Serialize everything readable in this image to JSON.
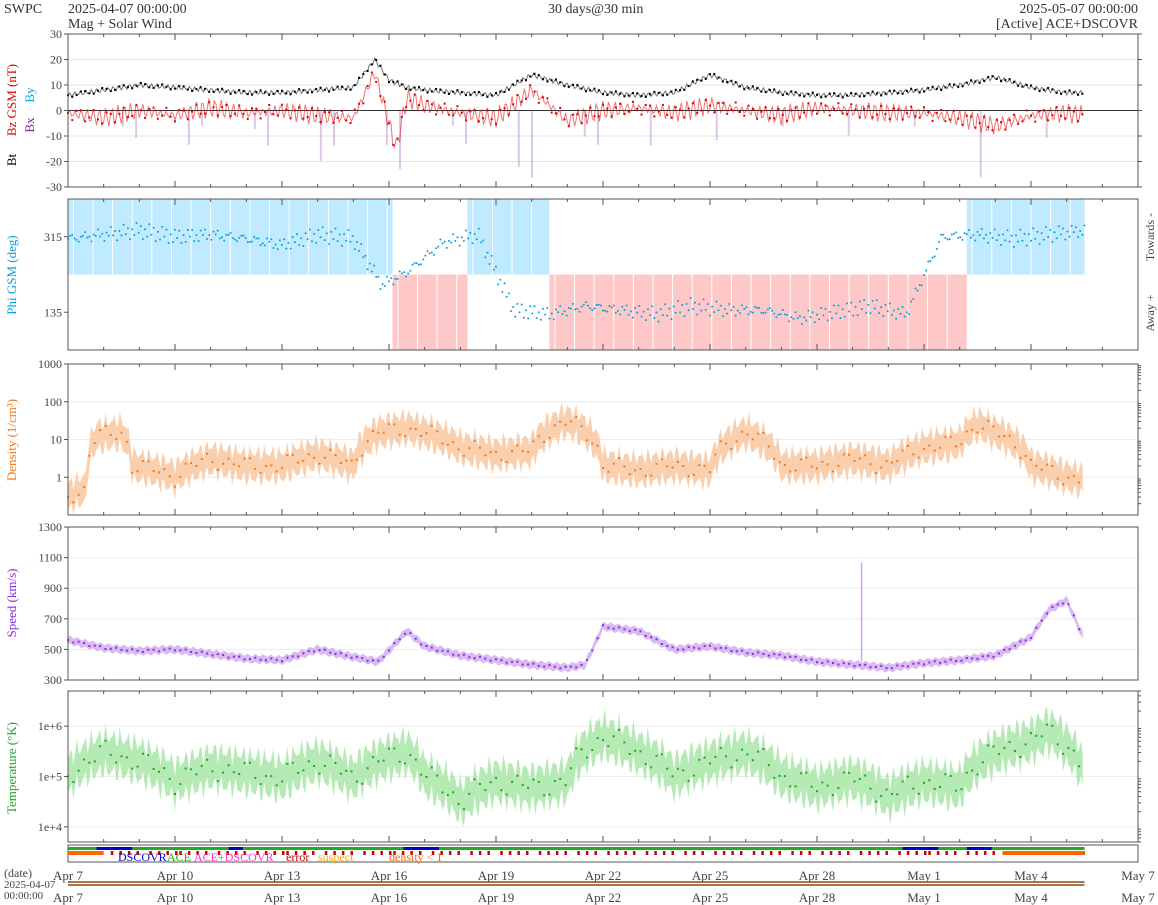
{
  "header": {
    "org": "SWPC",
    "start": "2025-04-07 00:00:00",
    "subtitle": "Mag + Solar Wind",
    "span": "30 days@30 min",
    "end": "2025-05-07 00:00:00",
    "source": "[Active] ACE+DSCOVR"
  },
  "colors": {
    "bt": "#000000",
    "bz": "#e00000",
    "bx": "#7b1fa2",
    "by": "#00a8e8",
    "phi": "#0aa0e0",
    "phi_towards_fill": "#bfeaff",
    "phi_away_fill": "#ffc8c8",
    "density": "#f47a1c",
    "density_band": "#f9c7a0",
    "speed": "#8a2be2",
    "speed_band": "#cfa9ef",
    "temperature": "#1fa81f",
    "temperature_band": "#a8e6a8",
    "dscovr": "#0000cc",
    "ace": "#22aa22",
    "ace_dscovr": "#ff33cc",
    "error": "#cc0000",
    "suspect": "#ffaa00",
    "density_lt1": "#ff6600"
  },
  "chart_data": [
    {
      "type": "line",
      "panel": "mag",
      "ylabel_parts": [
        "Bt",
        "Bz GSM (nT)",
        "Bx",
        "By"
      ],
      "ylim": [
        -30,
        30
      ],
      "yticks": [
        -30,
        -20,
        -10,
        0,
        10,
        20,
        30
      ],
      "x_days": [
        0,
        30
      ],
      "series": [
        {
          "name": "Bt",
          "x": [
            0,
            1,
            2,
            3,
            4,
            5,
            6,
            7,
            8,
            8.6,
            9,
            9.5,
            10,
            11,
            12,
            13,
            14,
            15,
            16,
            17,
            18,
            19,
            20,
            21,
            22,
            23,
            24,
            25,
            26,
            27,
            28,
            28.5
          ],
          "values": [
            6,
            8,
            10,
            9,
            8,
            7,
            7,
            8,
            9,
            20,
            12,
            9,
            8,
            7,
            6,
            14,
            10,
            7,
            6,
            7,
            14,
            9,
            7,
            6,
            6,
            7,
            8,
            10,
            13,
            9,
            7,
            7
          ]
        },
        {
          "name": "Bz GSM",
          "x": [
            0,
            1,
            2,
            3,
            4,
            5,
            6,
            7,
            8,
            8.6,
            9.2,
            9.5,
            10,
            11,
            12,
            13,
            14,
            15,
            16,
            17,
            18,
            19,
            20,
            21,
            22,
            23,
            24,
            25,
            26,
            27,
            28,
            28.5
          ],
          "values": [
            -1,
            -3,
            0,
            -2,
            1,
            -1,
            0,
            -2,
            -3,
            15,
            -15,
            5,
            2,
            -1,
            -3,
            8,
            -4,
            0,
            1,
            -1,
            2,
            0,
            -2,
            1,
            0,
            -1,
            -1,
            -3,
            -6,
            -2,
            -1,
            -2
          ]
        }
      ]
    },
    {
      "type": "scatter",
      "panel": "phi",
      "ylabel": "Phi GSM (deg)",
      "yticks": [
        135,
        315
      ],
      "ylim": [
        45,
        405
      ],
      "right_labels": [
        "Towards -",
        "Away +"
      ],
      "x_days": [
        0,
        30
      ],
      "series": [
        {
          "name": "Phi",
          "x": [
            0,
            1,
            2,
            3,
            4,
            5,
            6,
            7,
            8,
            8.8,
            9.5,
            10.5,
            11.5,
            12.5,
            13.5,
            14.5,
            15.5,
            16.5,
            17.5,
            18.5,
            19.5,
            20.5,
            21.5,
            22.5,
            23.5,
            24.5,
            25.5,
            26.5,
            27.5,
            28.5
          ],
          "values": [
            310,
            320,
            330,
            315,
            320,
            310,
            295,
            320,
            310,
            200,
            230,
            300,
            320,
            140,
            130,
            150,
            140,
            130,
            150,
            140,
            140,
            120,
            135,
            150,
            130,
            315,
            320,
            310,
            320,
            330
          ]
        }
      ],
      "sectors": [
        {
          "from": 0,
          "to": 9.1,
          "sector": "towards"
        },
        {
          "from": 9.1,
          "to": 11.2,
          "sector": "away"
        },
        {
          "from": 11.2,
          "to": 13.5,
          "sector": "towards"
        },
        {
          "from": 13.5,
          "to": 25.2,
          "sector": "away"
        },
        {
          "from": 25.2,
          "to": 28.5,
          "sector": "towards"
        }
      ]
    },
    {
      "type": "line",
      "panel": "density",
      "ylabel": "Density (1/cm³)",
      "yscale": "log",
      "ylim": [
        0.1,
        1000
      ],
      "yticks": [
        1,
        10,
        100,
        1000
      ],
      "ytick_labels": [
        "1",
        "10",
        "100",
        "1000"
      ],
      "x_days": [
        0,
        30
      ],
      "series": [
        {
          "name": "Density",
          "x": [
            0,
            0.5,
            0.8,
            1.5,
            1.8,
            2.5,
            3,
            4,
            5,
            6,
            7,
            8,
            8.7,
            9.5,
            10,
            11,
            12,
            13,
            14,
            15,
            16,
            17,
            18,
            19,
            20,
            21,
            22,
            23,
            24,
            25,
            25.5,
            26,
            27,
            28,
            28.5
          ],
          "values": [
            0.3,
            0.5,
            12,
            15,
            2,
            1.5,
            1,
            3,
            2,
            2,
            4,
            2,
            15,
            20,
            15,
            6,
            4,
            5,
            30,
            2,
            1.5,
            2,
            1.5,
            15,
            2,
            2,
            3,
            2,
            6,
            8,
            25,
            15,
            2,
            1,
            0.8
          ]
        }
      ]
    },
    {
      "type": "line",
      "panel": "speed",
      "ylabel": "Speed (km/s)",
      "ylim": [
        300,
        1300
      ],
      "yticks": [
        300,
        500,
        700,
        900,
        1100,
        1300
      ],
      "x_days": [
        0,
        30
      ],
      "series": [
        {
          "name": "Speed",
          "x": [
            0,
            1,
            2,
            3,
            4,
            5,
            6,
            7,
            8,
            8.7,
            9.5,
            10,
            11,
            12,
            13,
            14,
            14.5,
            15,
            16,
            17,
            18,
            19,
            20,
            21,
            22,
            23,
            24,
            25,
            26,
            27,
            27.5,
            28,
            28.5
          ],
          "values": [
            560,
            510,
            490,
            500,
            470,
            440,
            430,
            500,
            450,
            420,
            620,
            520,
            460,
            430,
            400,
            380,
            400,
            650,
            620,
            500,
            520,
            480,
            460,
            420,
            400,
            380,
            410,
            430,
            460,
            580,
            760,
            820,
            560
          ]
        }
      ]
    },
    {
      "type": "line",
      "panel": "temperature",
      "ylabel": "Temperature (°K)",
      "yscale": "log",
      "ylim": [
        5000,
        5000000
      ],
      "yticks": [
        10000,
        100000,
        1000000
      ],
      "ytick_labels": [
        "1e+4",
        "1e+5",
        "1e+6"
      ],
      "x_days": [
        0,
        30
      ],
      "series": [
        {
          "name": "Temperature",
          "x": [
            0,
            1,
            2,
            3,
            4,
            5,
            6,
            7,
            8,
            8.7,
            9.5,
            10,
            11,
            12,
            13,
            14,
            15,
            16,
            17,
            18,
            19,
            20,
            21,
            22,
            23,
            24,
            25,
            26,
            27,
            27.5,
            28,
            28.5
          ],
          "values": [
            100000,
            300000,
            200000,
            80000,
            150000,
            120000,
            90000,
            200000,
            90000,
            200000,
            300000,
            100000,
            30000,
            80000,
            60000,
            80000,
            600000,
            300000,
            100000,
            200000,
            300000,
            100000,
            60000,
            90000,
            40000,
            80000,
            60000,
            300000,
            500000,
            800000,
            400000,
            100000
          ]
        }
      ]
    },
    {
      "type": "table",
      "panel": "status",
      "legend": [
        "DSCOVR",
        "ACE",
        "ACE+DSCOVR",
        "error",
        "suspect",
        "density < 1"
      ]
    }
  ],
  "xaxis": {
    "label": "(date)",
    "start_stamp_date": "2025-04-07",
    "start_stamp_time": "00:00:00",
    "ticks": [
      {
        "day": 0,
        "label": "Apr 7"
      },
      {
        "day": 3,
        "label": "Apr 10"
      },
      {
        "day": 6,
        "label": "Apr 13"
      },
      {
        "day": 9,
        "label": "Apr 16"
      },
      {
        "day": 12,
        "label": "Apr 19"
      },
      {
        "day": 15,
        "label": "Apr 22"
      },
      {
        "day": 18,
        "label": "Apr 25"
      },
      {
        "day": 21,
        "label": "Apr 28"
      },
      {
        "day": 24,
        "label": "May 1"
      },
      {
        "day": 27,
        "label": "May 4"
      },
      {
        "day": 30,
        "label": "May 7"
      }
    ]
  }
}
